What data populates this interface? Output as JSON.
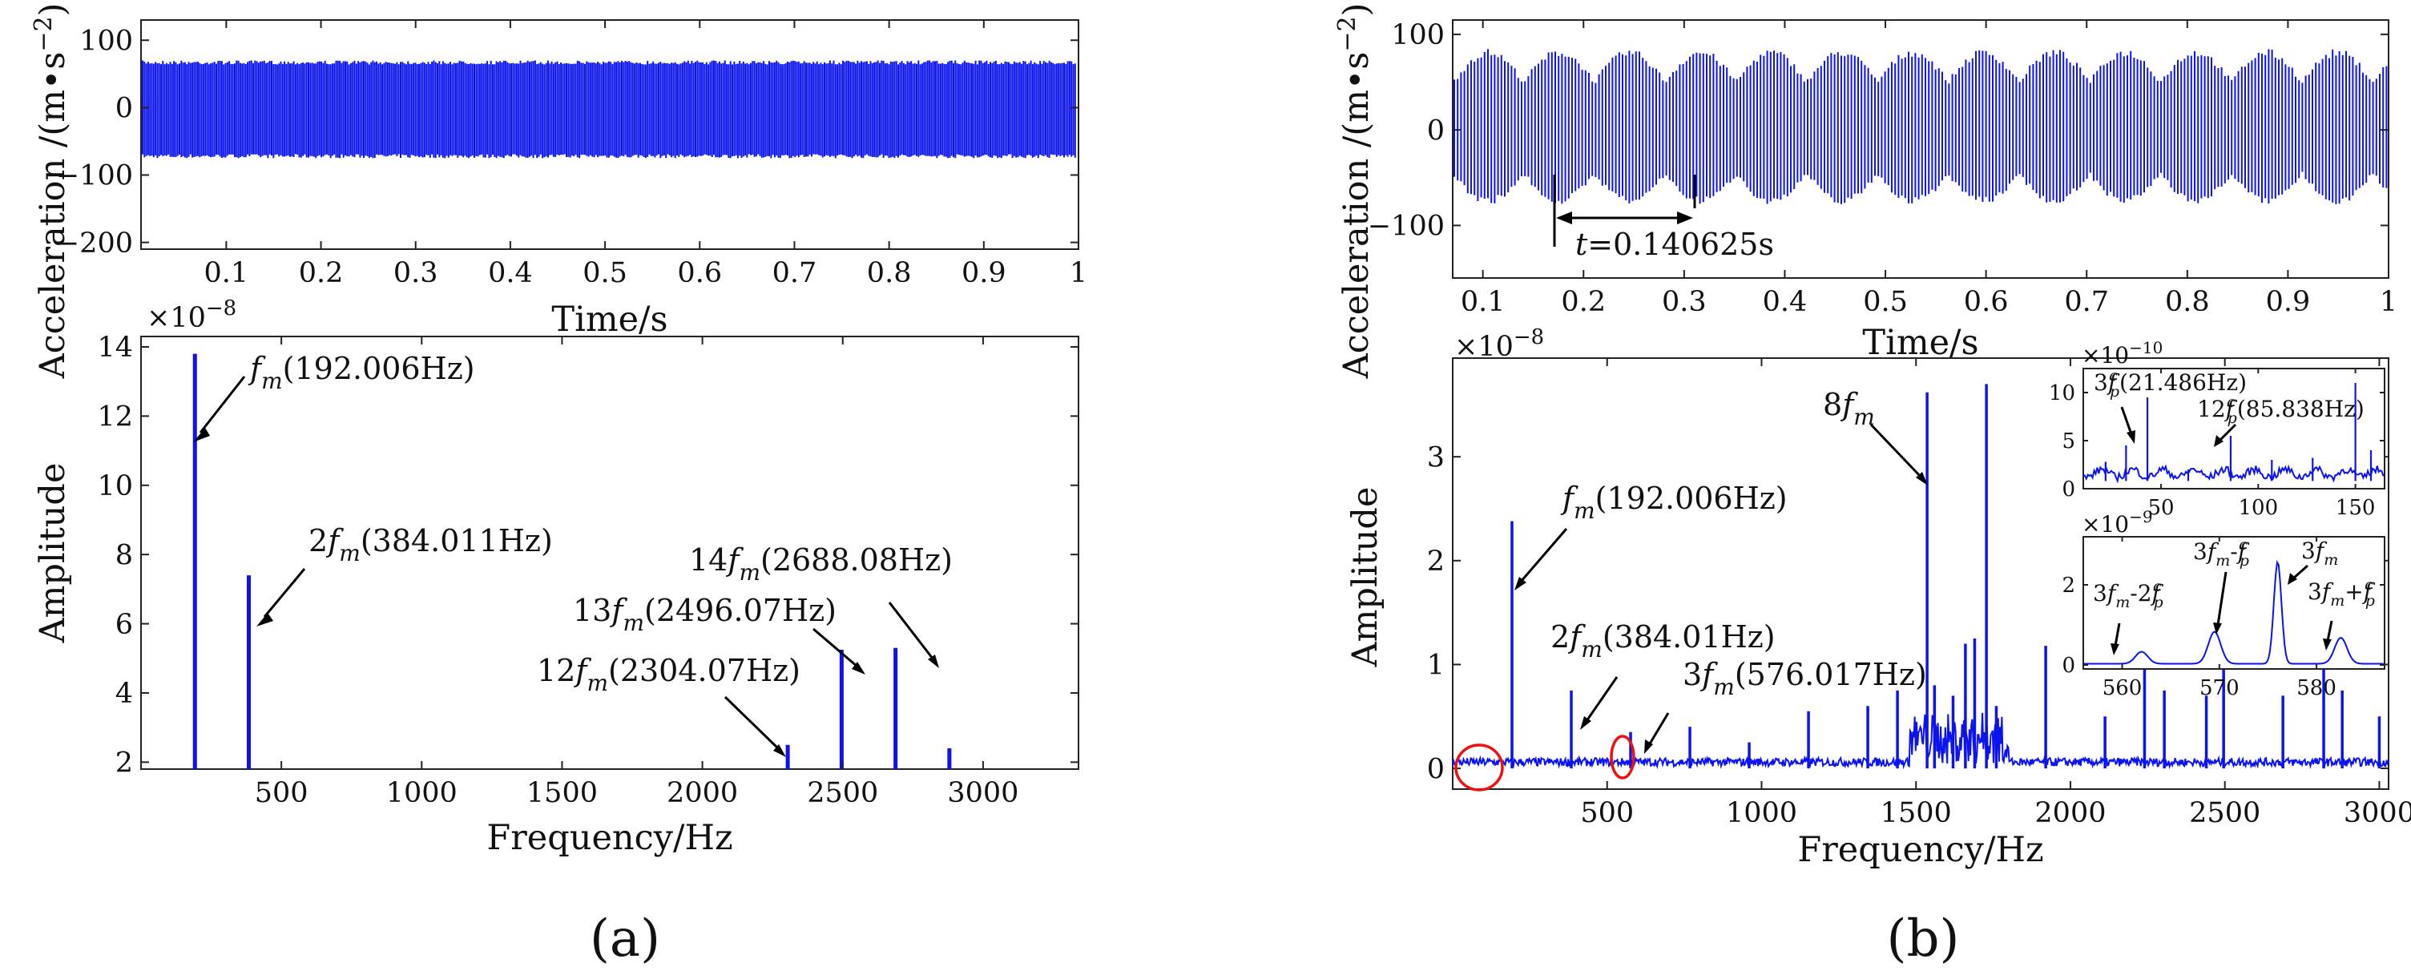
{
  "chart_data": [
    {
      "id": "a_time",
      "type": "line",
      "title": "",
      "xlabel": "Time/s",
      "ylabel": "Acceleration /(m•s⁻²)",
      "xlim": [
        0.01,
        1.0
      ],
      "ylim": [
        -210,
        130
      ],
      "xticks": [
        "0.1",
        "0.2",
        "0.3",
        "0.4",
        "0.5",
        "0.6",
        "0.7",
        "0.8",
        "0.9",
        "1"
      ],
      "yticks": [
        "100",
        "0",
        "-100",
        "-200"
      ],
      "signal": {
        "amplitude_max": 70,
        "amplitude_min": -75,
        "dense_oscillation": true
      }
    },
    {
      "id": "a_spec",
      "type": "bar",
      "xlabel": "Frequency/Hz",
      "ylabel": "Amplitude",
      "exponent": "×10⁻⁸",
      "xlim": [
        0,
        3340
      ],
      "ylim": [
        1.8,
        14.3
      ],
      "xticks": [
        "500",
        "1000",
        "1500",
        "2000",
        "2500",
        "3000"
      ],
      "yticks": [
        "2",
        "4",
        "6",
        "8",
        "10",
        "12",
        "14"
      ],
      "x": [
        192.006,
        384.011,
        2304.07,
        2496.07,
        2688.08,
        2880.0
      ],
      "values": [
        13.8,
        7.4,
        2.5,
        5.25,
        5.3,
        2.4
      ],
      "annotations": [
        {
          "label": "f",
          "sub": "m",
          "text": "(192.006Hz)"
        },
        {
          "label": "2f",
          "sub": "m",
          "text": "(384.011Hz)"
        },
        {
          "label": "14f",
          "sub": "m",
          "text": "(2688.08Hz)"
        },
        {
          "label": "13f",
          "sub": "m",
          "text": "(2496.07Hz)"
        },
        {
          "label": "12f",
          "sub": "m",
          "text": "(2304.07Hz)"
        }
      ]
    },
    {
      "id": "b_time",
      "type": "line",
      "xlabel": "Time/s",
      "ylabel": "Acceleration /(m•s⁻²)",
      "xlim": [
        0.07,
        1.0
      ],
      "ylim": [
        -155,
        115
      ],
      "xticks": [
        "0.1",
        "0.2",
        "0.3",
        "0.4",
        "0.5",
        "0.6",
        "0.7",
        "0.8",
        "0.9",
        "1"
      ],
      "yticks": [
        "100",
        "0",
        "-100"
      ],
      "signal": {
        "amplitude_max": 85,
        "amplitude_min": -78,
        "period_s": 0.140625
      },
      "annotation": {
        "label": "t",
        "text": "=0.140625s"
      }
    },
    {
      "id": "b_spec",
      "type": "line",
      "xlabel": "Frequency/Hz",
      "ylabel": "Amplitude",
      "exponent": "×10⁻⁸",
      "xlim": [
        0,
        3030
      ],
      "ylim": [
        -0.2,
        3.95
      ],
      "xticks": [
        "500",
        "1000",
        "1500",
        "2000",
        "2500",
        "3000"
      ],
      "yticks": [
        "0",
        "1",
        "2",
        "3"
      ],
      "peaks": [
        {
          "x": 192,
          "y": 2.38
        },
        {
          "x": 384,
          "y": 0.75
        },
        {
          "x": 576,
          "y": 0.35
        },
        {
          "x": 768,
          "y": 0.4
        },
        {
          "x": 960,
          "y": 0.25
        },
        {
          "x": 1152,
          "y": 0.55
        },
        {
          "x": 1344,
          "y": 0.6
        },
        {
          "x": 1440,
          "y": 0.75
        },
        {
          "x": 1536,
          "y": 3.62
        },
        {
          "x": 1560,
          "y": 0.8
        },
        {
          "x": 1620,
          "y": 0.7
        },
        {
          "x": 1660,
          "y": 1.2
        },
        {
          "x": 1690,
          "y": 1.25
        },
        {
          "x": 1728,
          "y": 3.7
        },
        {
          "x": 1760,
          "y": 0.6
        },
        {
          "x": 1920,
          "y": 1.18
        },
        {
          "x": 2112,
          "y": 0.5
        },
        {
          "x": 2240,
          "y": 0.95
        },
        {
          "x": 2304,
          "y": 0.75
        },
        {
          "x": 2440,
          "y": 0.7
        },
        {
          "x": 2496,
          "y": 0.95
        },
        {
          "x": 2688,
          "y": 0.7
        },
        {
          "x": 2820,
          "y": 0.95
        },
        {
          "x": 2880,
          "y": 0.75
        },
        {
          "x": 3000,
          "y": 0.5
        }
      ],
      "annotations": [
        {
          "label": "8f",
          "sub": "m",
          "text": ""
        },
        {
          "label": "f",
          "sub": "m",
          "text": "(192.006Hz)"
        },
        {
          "label": "2f",
          "sub": "m",
          "text": "(384.01Hz)"
        },
        {
          "label": "3f",
          "sub": "m",
          "text": "(576.017Hz)"
        }
      ]
    },
    {
      "id": "b_inset1",
      "type": "line",
      "exponent": "×10⁻¹⁰",
      "xlim": [
        10,
        165
      ],
      "ylim": [
        0,
        12.5
      ],
      "xticks": [
        "50",
        "100",
        "150"
      ],
      "yticks": [
        "0",
        "5",
        "10"
      ],
      "peaks": [
        {
          "x": 21.486,
          "y": 2.8
        },
        {
          "x": 32,
          "y": 4.5
        },
        {
          "x": 43,
          "y": 9.5
        },
        {
          "x": 64,
          "y": 2.0
        },
        {
          "x": 85.838,
          "y": 5.5
        },
        {
          "x": 107,
          "y": 3.0
        },
        {
          "x": 128,
          "y": 3.2
        },
        {
          "x": 150,
          "y": 11.0
        },
        {
          "x": 158,
          "y": 4.0
        }
      ],
      "annotations": [
        {
          "label": "3f",
          "sub": "p",
          "sup": "c",
          "text": "(21.486Hz)"
        },
        {
          "label": "12f",
          "sub": "p",
          "sup": "c",
          "text": "(85.838Hz)"
        }
      ]
    },
    {
      "id": "b_inset2",
      "type": "line",
      "exponent": "×10⁻⁹",
      "xlim": [
        556,
        587
      ],
      "ylim": [
        -0.1,
        3.2
      ],
      "xticks": [
        "560",
        "570",
        "580"
      ],
      "yticks": [
        "0",
        "2"
      ],
      "peaks": [
        {
          "x": 562,
          "y": 0.3
        },
        {
          "x": 569.5,
          "y": 0.8
        },
        {
          "x": 576,
          "y": 2.55
        },
        {
          "x": 582.5,
          "y": 0.65
        }
      ],
      "annotations": [
        {
          "label": "3f",
          "sub": "m",
          "text": "-2f",
          "sub2": "p",
          "sup2": "c"
        },
        {
          "label": "3f",
          "sub": "m",
          "text": "-f",
          "sub2": "p",
          "sup2": "c"
        },
        {
          "label": "3f",
          "sub": "m",
          "text": ""
        },
        {
          "label": "3f",
          "sub": "m",
          "text": "+f",
          "sub2": "p",
          "sup2": "c"
        }
      ]
    }
  ],
  "panel_labels": {
    "a": "(a)",
    "b": "(b)"
  },
  "colors": {
    "signal": "#0b13f0",
    "circle": "#e11111"
  }
}
